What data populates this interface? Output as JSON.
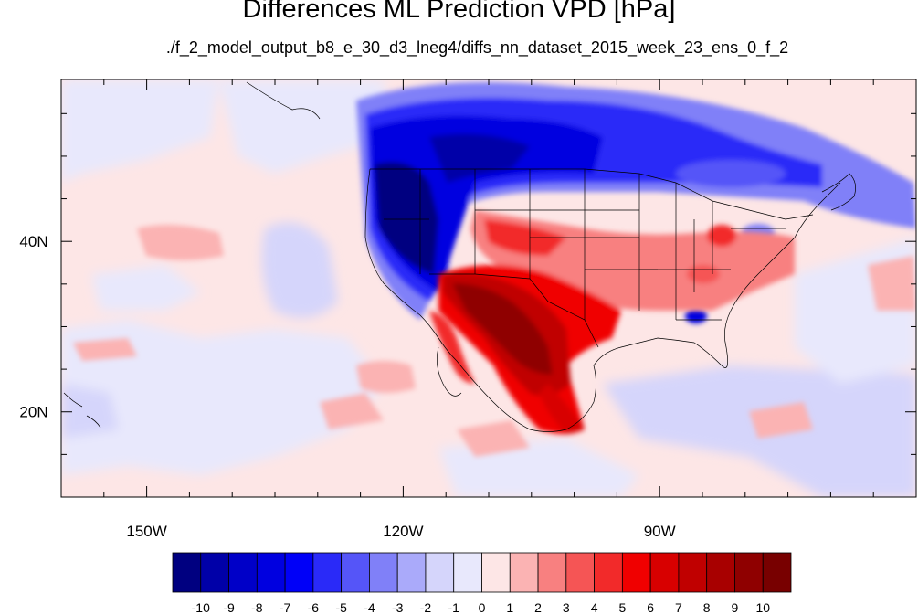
{
  "title": "Differences ML Prediction VPD [hPa]",
  "subtitle": "./f_2_model_output_b8_e_30_d3_lneg4/diffs_nn_dataset_2015_week_23_ens_0_f_2",
  "map": {
    "projection": "cylindrical equidistant",
    "lon_range": [
      -160,
      -60
    ],
    "lat_range": [
      10,
      59
    ],
    "lon_ticks": [
      {
        "value": -150,
        "label": "150W"
      },
      {
        "value": -120,
        "label": "120W"
      },
      {
        "value": -90,
        "label": "90W"
      }
    ],
    "lat_ticks": [
      {
        "value": 40,
        "label": "40N"
      },
      {
        "value": 20,
        "label": "20N"
      }
    ],
    "lon_minor": [
      -155,
      -145,
      -140,
      -135,
      -130,
      -125,
      -115,
      -110,
      -105,
      -100,
      -95,
      -85,
      -80,
      -75,
      -70,
      -65
    ],
    "lat_minor": [
      15,
      25,
      30,
      35,
      45,
      50,
      55
    ],
    "boundaries": "country and US state outlines",
    "background_level": "-1 to 0 (light lavender) / 0 to 1 (light pink)",
    "features": [
      {
        "name": "strong negative anomaly",
        "region": "Pacific Northwest, northern Rockies, northern Great Plains, western Canada",
        "level": "-10 to -6"
      },
      {
        "name": "strong positive anomaly",
        "region": "Desert Southwest, Baja California, Mexico",
        "level": "6 to 10"
      },
      {
        "name": "moderate positive anomaly",
        "region": "Southern Plains, Mid-Atlantic",
        "level": "2 to 5"
      },
      {
        "name": "moderate negative anomaly",
        "region": "Central Plains and Ohio Valley pockets, eastern Canada",
        "level": "-5 to -2"
      }
    ]
  },
  "colorbar": {
    "labels": [
      "-10",
      "-9",
      "-8",
      "-7",
      "-6",
      "-5",
      "-4",
      "-3",
      "-2",
      "-1",
      "0",
      "1",
      "2",
      "3",
      "4",
      "5",
      "6",
      "7",
      "8",
      "9",
      "10"
    ],
    "colors": [
      "#000080",
      "#0000a8",
      "#0000c8",
      "#0000e0",
      "#0000f8",
      "#2a2af8",
      "#5555f8",
      "#8080f8",
      "#aaaafa",
      "#d5d5fb",
      "#e8e8fc",
      "#fde6e6",
      "#fbb3b3",
      "#f88080",
      "#f55555",
      "#f22a2a",
      "#f00000",
      "#d80000",
      "#c00000",
      "#a80000",
      "#8f0000",
      "#780000"
    ]
  }
}
